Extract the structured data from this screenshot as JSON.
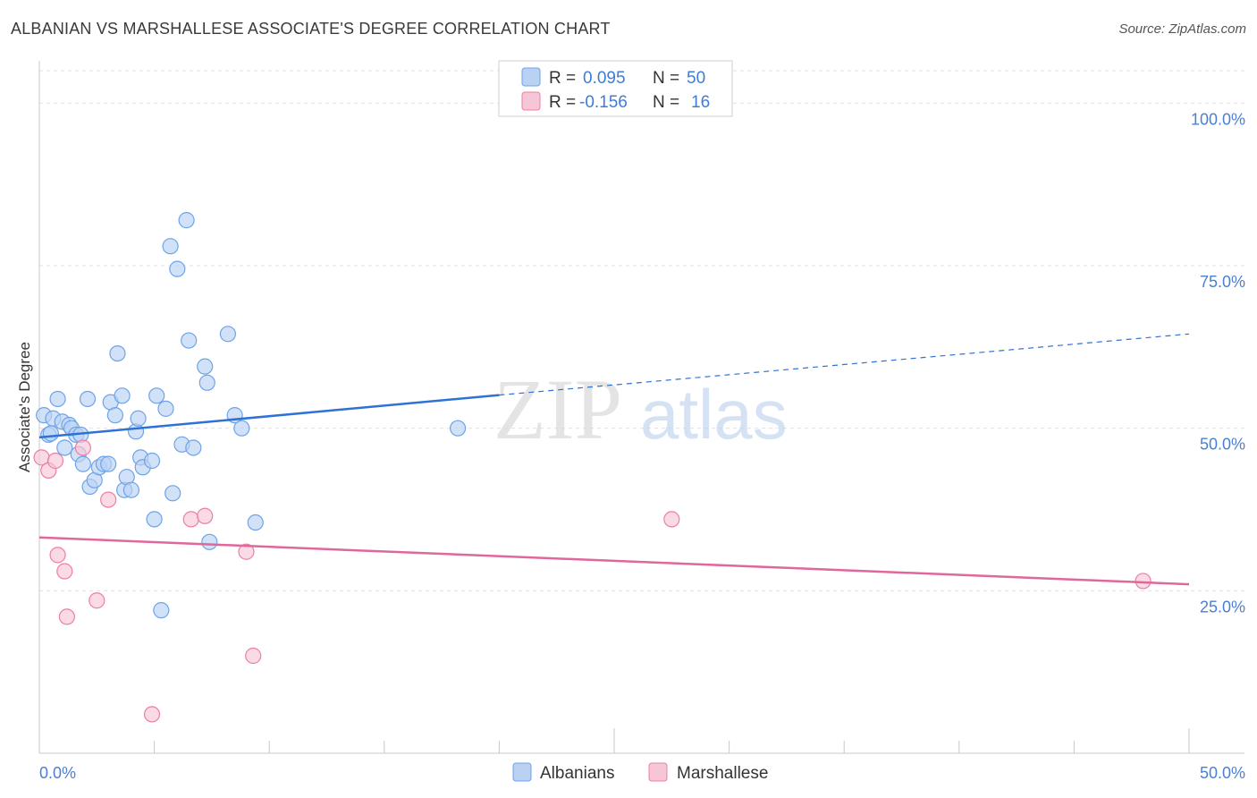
{
  "title": "ALBANIAN VS MARSHALLESE ASSOCIATE'S DEGREE CORRELATION CHART",
  "source": "Source: ZipAtlas.com",
  "watermark": {
    "zip": "ZIP",
    "atlas": "atlas"
  },
  "colors": {
    "blue": "#6fa3e6",
    "blue_fill": "#b9d2f4",
    "blue_line": "#2f72d6",
    "pink": "#ec7fa3",
    "pink_fill": "#f7c6d6",
    "pink_line": "#e0679a",
    "label": "#4a7fd4"
  },
  "legend": {
    "rows": [
      {
        "r_label": "R =",
        "r_value": "0.095",
        "n_label": "N =",
        "n_value": "50"
      },
      {
        "r_label": "R =",
        "r_value": "-0.156",
        "n_label": "N =",
        "n_value": "16"
      }
    ]
  },
  "bottom_legend": [
    "Albanians",
    "Marshallese"
  ],
  "chart_data": {
    "type": "scatter",
    "title": "ALBANIAN VS MARSHALLESE ASSOCIATE'S DEGREE CORRELATION CHART",
    "xlabel": "",
    "ylabel": "Associate's Degree",
    "xlim": [
      0,
      50
    ],
    "ylim": [
      0,
      105
    ],
    "x_tick_labels": [
      "0.0%",
      "50.0%"
    ],
    "y_ticks": [
      25,
      50,
      75,
      100
    ],
    "y_tick_labels": [
      "25.0%",
      "50.0%",
      "75.0%",
      "100.0%"
    ],
    "series": [
      {
        "name": "Albanians",
        "r": 0.095,
        "n": 50,
        "trend": {
          "x0": 0,
          "y0": 48.6,
          "x1": 20,
          "y1": 55.1,
          "dash_x1": 50,
          "dash_y1": 64.5
        },
        "points": [
          [
            0.2,
            52
          ],
          [
            0.4,
            49
          ],
          [
            0.6,
            51.5
          ],
          [
            0.8,
            54.5
          ],
          [
            1.0,
            51
          ],
          [
            1.1,
            47
          ],
          [
            1.3,
            50.5
          ],
          [
            1.4,
            50
          ],
          [
            1.6,
            49
          ],
          [
            1.7,
            46
          ],
          [
            1.9,
            44.5
          ],
          [
            2.1,
            54.5
          ],
          [
            2.2,
            41
          ],
          [
            2.4,
            42
          ],
          [
            2.6,
            44
          ],
          [
            2.8,
            44.5
          ],
          [
            3.0,
            44.5
          ],
          [
            3.1,
            54
          ],
          [
            3.3,
            52
          ],
          [
            3.4,
            61.5
          ],
          [
            3.6,
            55
          ],
          [
            3.7,
            40.5
          ],
          [
            3.8,
            42.5
          ],
          [
            4.0,
            40.5
          ],
          [
            4.2,
            49.5
          ],
          [
            4.3,
            51.5
          ],
          [
            4.4,
            45.5
          ],
          [
            4.5,
            44
          ],
          [
            4.9,
            45
          ],
          [
            5.0,
            36
          ],
          [
            5.1,
            55
          ],
          [
            5.3,
            22
          ],
          [
            5.5,
            53
          ],
          [
            5.7,
            78
          ],
          [
            5.8,
            40
          ],
          [
            6.0,
            74.5
          ],
          [
            6.2,
            47.5
          ],
          [
            6.4,
            82
          ],
          [
            6.5,
            63.5
          ],
          [
            6.7,
            47
          ],
          [
            7.2,
            59.5
          ],
          [
            7.3,
            57
          ],
          [
            7.4,
            32.5
          ],
          [
            8.2,
            64.5
          ],
          [
            8.5,
            52
          ],
          [
            8.8,
            50
          ],
          [
            9.4,
            35.5
          ],
          [
            18.2,
            50
          ],
          [
            0.5,
            49.2
          ],
          [
            1.8,
            49
          ]
        ]
      },
      {
        "name": "Marshallese",
        "r": -0.156,
        "n": 16,
        "trend": {
          "x0": 0,
          "y0": 33.2,
          "x1": 50,
          "y1": 26.0
        },
        "points": [
          [
            0.1,
            45.5
          ],
          [
            0.4,
            43.5
          ],
          [
            0.7,
            45
          ],
          [
            0.8,
            30.5
          ],
          [
            1.1,
            28
          ],
          [
            1.2,
            21
          ],
          [
            1.9,
            47
          ],
          [
            2.5,
            23.5
          ],
          [
            3.0,
            39
          ],
          [
            4.9,
            6
          ],
          [
            6.6,
            36
          ],
          [
            7.2,
            36.5
          ],
          [
            9.0,
            31
          ],
          [
            9.3,
            15
          ],
          [
            27.5,
            36
          ],
          [
            48.0,
            26.5
          ]
        ]
      }
    ]
  }
}
